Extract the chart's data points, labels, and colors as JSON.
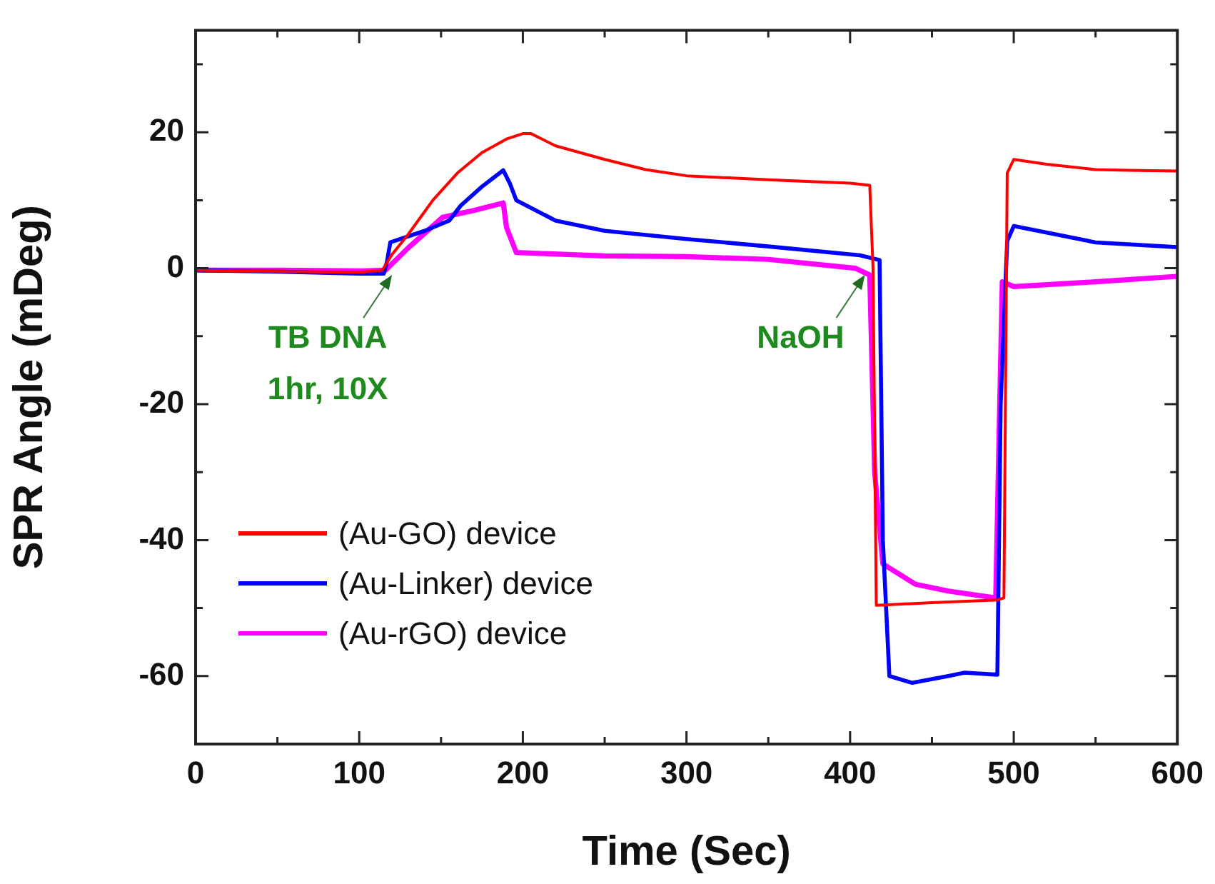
{
  "chart_data": {
    "type": "line",
    "xlabel": "Time (Sec)",
    "ylabel": "SPR Angle (mDeg)",
    "xlim": [
      0,
      600
    ],
    "ylim": [
      -70,
      35
    ],
    "xticks": [
      0,
      {
        "value": 50,
        "label": null
      },
      100,
      {
        "value": 150,
        "label": null
      },
      200,
      {
        "value": 250,
        "label": null
      },
      300,
      {
        "value": 350,
        "label": null
      },
      400,
      {
        "value": 450,
        "label": null
      },
      500,
      {
        "value": 550,
        "label": null
      },
      600
    ],
    "yticks": [
      -60,
      {
        "value": -50,
        "label": null
      },
      -40,
      {
        "value": -30,
        "label": null
      },
      -20,
      {
        "value": -10,
        "label": null
      },
      0,
      {
        "value": 10,
        "label": null
      },
      20,
      {
        "value": 30,
        "label": null
      }
    ],
    "grid": false,
    "legend": "bottom left",
    "marker": "none",
    "line_style": "solid",
    "series": [
      {
        "name": "(Au-GO) device",
        "color": "#ff0000",
        "x": [
          0,
          50,
          100,
          114,
          120,
          130,
          145,
          160,
          175,
          190,
          200,
          205,
          220,
          250,
          275,
          300,
          350,
          400,
          412,
          414,
          416,
          450,
          490,
          494,
          496,
          500,
          520,
          550,
          570,
          600
        ],
        "values": [
          -0.3,
          -0.5,
          -0.6,
          -0.3,
          2,
          5,
          10,
          14,
          17,
          19,
          19.8,
          19.8,
          18,
          16,
          14.5,
          13.6,
          13,
          12.5,
          12.2,
          0,
          -49.6,
          -49.2,
          -48.8,
          -48.5,
          14,
          16,
          15.3,
          14.5,
          14.4,
          14.3
        ]
      },
      {
        "name": "(Au-Linker) device",
        "color": "#0000ff",
        "x": [
          0,
          50,
          100,
          115,
          117,
          119,
          140,
          155,
          162,
          175,
          188,
          192,
          196,
          220,
          250,
          300,
          350,
          406,
          418,
          420,
          424,
          438,
          460,
          470,
          490,
          492,
          496,
          500,
          550,
          600
        ],
        "values": [
          -0.3,
          -0.5,
          -0.8,
          -0.8,
          1,
          3.8,
          5.5,
          7,
          9.2,
          12,
          14.4,
          12.5,
          10,
          7,
          5.5,
          4.3,
          3.2,
          1.9,
          1.2,
          -40,
          -60,
          -61,
          -60,
          -59.5,
          -59.8,
          -20,
          4,
          6.2,
          3.8,
          3.1
        ]
      },
      {
        "name": "(Au-rGO) device",
        "color": "#ff00ff",
        "x": [
          0,
          50,
          100,
          116,
          130,
          151,
          170,
          188,
          190,
          196,
          250,
          300,
          350,
          403,
          412,
          415,
          420,
          440,
          460,
          489,
          491,
          493,
          500,
          550,
          600
        ],
        "values": [
          -0.3,
          -0.3,
          -0.4,
          -0.3,
          3,
          7.5,
          8.5,
          9.6,
          6,
          2.3,
          1.8,
          1.7,
          1.3,
          0,
          -1,
          -30,
          -43.5,
          -46.5,
          -47.5,
          -48.5,
          -25,
          -2,
          -2.7,
          -2,
          -1.2
        ]
      }
    ],
    "annotations": [
      {
        "text": "TB DNA\n1hr, 10X",
        "x": 120,
        "y": -1
      },
      {
        "text": "NaOH",
        "x": 409,
        "y": -1
      }
    ]
  }
}
